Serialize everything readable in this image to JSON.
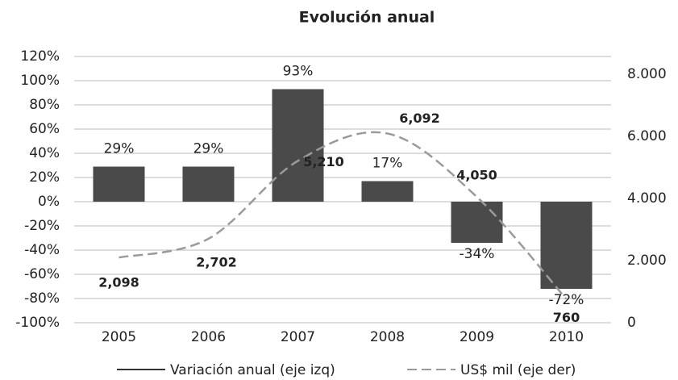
{
  "chart_data": {
    "type": "bar_line",
    "title": "Evolución anual",
    "categories": [
      "2005",
      "2006",
      "2007",
      "2008",
      "2009",
      "2010"
    ],
    "series": [
      {
        "name": "Variación anual (eje izq)",
        "color": "#4a4a4a",
        "type": "bar",
        "values": [
          29,
          29,
          93,
          17,
          -34,
          -72
        ],
        "value_labels": [
          "29%",
          "29%",
          "93%",
          "17%",
          "-34%",
          "-72%"
        ]
      },
      {
        "name": "US$ mil (eje der)",
        "color": "#9a9a9a",
        "type": "line",
        "axis": "y2",
        "dashed": true,
        "values": [
          2098,
          2702,
          5210,
          6092,
          4050,
          760
        ],
        "value_labels": [
          "2,098",
          "2,702",
          "5,210",
          "6,092",
          "4,050",
          "760"
        ]
      }
    ],
    "ylim": [
      -100,
      120
    ],
    "yticks": [
      {
        "value": -100,
        "label": "-100%"
      },
      {
        "value": -80,
        "label": "-80%"
      },
      {
        "value": -60,
        "label": "-60%"
      },
      {
        "value": -40,
        "label": "-40%"
      },
      {
        "value": -20,
        "label": "-20%"
      },
      {
        "value": 0,
        "label": "0%"
      },
      {
        "value": 20,
        "label": "20%"
      },
      {
        "value": 40,
        "label": "40%"
      },
      {
        "value": 60,
        "label": "60%"
      },
      {
        "value": 80,
        "label": "80%"
      },
      {
        "value": 100,
        "label": "100%"
      },
      {
        "value": 120,
        "label": "120%"
      }
    ],
    "y2lim": [
      0,
      8570
    ],
    "y2ticks": [
      0,
      {
        "value": 2000,
        "label": "2.000"
      },
      {
        "value": 4000,
        "label": "4.000"
      },
      {
        "value": 6000,
        "label": "6.000"
      },
      {
        "value": 8000,
        "label": "8.000"
      }
    ],
    "grid": true,
    "legend": "bottom"
  }
}
